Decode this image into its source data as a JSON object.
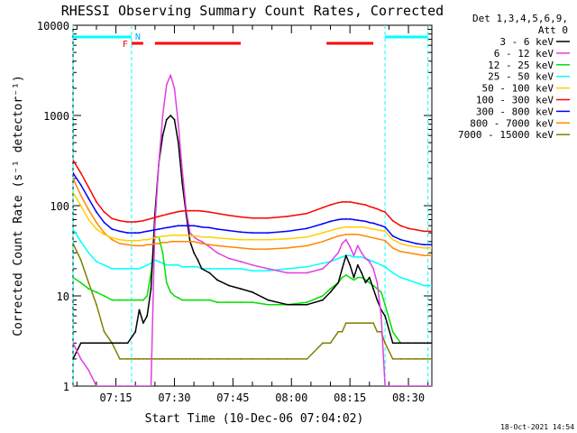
{
  "chart_data": {
    "type": "line",
    "title": "RHESSI Observing Summary Count Rates, Corrected",
    "xlabel": "Start Time (10-Dec-06 07:04:02)",
    "ylabel": "Corrected Count Rate (s⁻¹ detector⁻¹)",
    "y_scale": "log",
    "ylim": [
      1,
      10000
    ],
    "xlim_minutes": [
      0,
      92
    ],
    "x_tick_labels": [
      "07:15",
      "07:30",
      "07:45",
      "08:00",
      "08:15",
      "08:30"
    ],
    "x_tick_minutes": [
      11,
      26,
      41,
      56,
      71,
      86
    ],
    "y_tick_labels": [
      "1",
      "10",
      "100",
      "1000",
      "10000"
    ],
    "y_tick_values": [
      1,
      10,
      100,
      1000,
      10000
    ],
    "legend_header": [
      "Det 1,3,4,5,6,9,",
      "Att 0"
    ],
    "timestamp": "18-Oct-2021 14:54",
    "annotations": {
      "flare_flag": "F",
      "night_flag": "N"
    },
    "vlines_minutes": [
      0,
      15,
      80,
      91
    ],
    "night_bars": [
      [
        0,
        15
      ],
      [
        80,
        91
      ]
    ],
    "flare_bars": [
      [
        15,
        18
      ],
      [
        21,
        43
      ],
      [
        65,
        77
      ]
    ],
    "series": [
      {
        "name": "3 - 6 keV",
        "color": "#000000",
        "x": [
          0,
          2,
          4,
          6,
          8,
          10,
          12,
          14,
          16,
          17,
          18,
          19,
          20,
          21,
          22,
          23,
          24,
          25,
          26,
          27,
          28,
          29,
          30,
          31,
          32,
          33,
          35,
          37,
          40,
          43,
          46,
          50,
          55,
          60,
          64,
          66,
          68,
          69,
          70,
          71,
          72,
          73,
          74,
          75,
          76,
          77,
          78,
          79,
          80,
          82,
          84,
          86,
          88,
          90,
          92
        ],
        "y": [
          2,
          3,
          3,
          3,
          3,
          3,
          3,
          3,
          4,
          7,
          5,
          6,
          12,
          80,
          300,
          600,
          900,
          1000,
          900,
          500,
          180,
          80,
          40,
          30,
          25,
          20,
          18,
          15,
          13,
          12,
          11,
          9,
          8,
          8,
          9,
          11,
          14,
          20,
          28,
          22,
          16,
          22,
          18,
          14,
          16,
          12,
          9,
          7,
          6,
          3,
          3,
          3,
          3,
          3,
          3
        ]
      },
      {
        "name": "6 - 12 keV",
        "color": "#e040e0",
        "x": [
          0,
          2,
          4,
          6,
          8,
          10,
          12,
          14,
          16,
          17,
          18,
          19,
          20,
          21,
          22,
          23,
          24,
          25,
          26,
          27,
          28,
          29,
          30,
          31,
          32,
          33,
          35,
          37,
          40,
          43,
          46,
          50,
          55,
          60,
          64,
          66,
          68,
          69,
          70,
          71,
          72,
          73,
          74,
          75,
          76,
          77,
          78,
          79,
          80,
          82,
          84,
          86,
          88,
          90,
          92
        ],
        "y": [
          3,
          2,
          1.5,
          1,
          1,
          1,
          1,
          1,
          1,
          1,
          1,
          1,
          1,
          60,
          300,
          1000,
          2200,
          2800,
          2000,
          800,
          250,
          90,
          50,
          45,
          42,
          40,
          35,
          30,
          26,
          24,
          22,
          20,
          18,
          18,
          20,
          24,
          30,
          38,
          42,
          35,
          28,
          36,
          30,
          26,
          24,
          20,
          14,
          6,
          1,
          1,
          1,
          1,
          1,
          1,
          1
        ]
      },
      {
        "name": "12 - 25 keV",
        "color": "#00e000",
        "x": [
          0,
          2,
          4,
          6,
          8,
          10,
          12,
          14,
          16,
          17,
          18,
          19,
          20,
          21,
          22,
          23,
          24,
          25,
          26,
          27,
          28,
          29,
          30,
          31,
          32,
          33,
          35,
          37,
          40,
          43,
          46,
          50,
          55,
          60,
          64,
          66,
          68,
          69,
          70,
          71,
          72,
          73,
          74,
          75,
          76,
          77,
          78,
          79,
          80,
          82,
          84,
          86,
          88,
          90,
          92
        ],
        "y": [
          16,
          14,
          12,
          11,
          10,
          9,
          9,
          9,
          9,
          9,
          9,
          10,
          18,
          45,
          45,
          30,
          14,
          11,
          10,
          9.5,
          9,
          9,
          9,
          9,
          9,
          9,
          9,
          8.5,
          8.5,
          8.5,
          8.5,
          8,
          8,
          8.5,
          10,
          12,
          14,
          16,
          17,
          16,
          15,
          16,
          16,
          15,
          14,
          13,
          12,
          11,
          8,
          4,
          3,
          3,
          3,
          3,
          3
        ]
      },
      {
        "name": "25 - 50 keV",
        "color": "#00ffff",
        "x": [
          0,
          2,
          4,
          6,
          8,
          10,
          12,
          14,
          16,
          17,
          18,
          19,
          20,
          21,
          22,
          23,
          24,
          25,
          26,
          27,
          28,
          29,
          30,
          31,
          32,
          33,
          35,
          37,
          40,
          43,
          46,
          50,
          55,
          60,
          64,
          66,
          68,
          69,
          70,
          71,
          72,
          73,
          74,
          75,
          76,
          77,
          78,
          79,
          80,
          82,
          84,
          86,
          88,
          90,
          92
        ],
        "y": [
          55,
          40,
          30,
          24,
          22,
          20,
          20,
          20,
          20,
          20,
          21,
          22,
          23,
          25,
          24,
          23,
          22,
          22,
          22,
          22,
          21,
          21,
          21,
          21,
          21,
          20,
          20,
          20,
          20,
          20,
          19,
          19,
          20,
          21,
          23,
          24,
          26,
          27,
          28,
          28,
          27,
          27,
          27,
          26,
          25,
          24,
          23,
          22,
          21,
          18,
          16,
          15,
          14,
          13,
          13
        ]
      },
      {
        "name": "50 - 100 keV",
        "color": "#ffd000",
        "x": [
          0,
          2,
          4,
          6,
          8,
          10,
          12,
          14,
          16,
          17,
          18,
          19,
          20,
          21,
          22,
          23,
          24,
          25,
          26,
          27,
          28,
          29,
          30,
          31,
          32,
          33,
          35,
          37,
          40,
          43,
          46,
          50,
          55,
          60,
          64,
          66,
          68,
          69,
          70,
          71,
          72,
          73,
          74,
          75,
          76,
          77,
          78,
          79,
          80,
          82,
          84,
          86,
          88,
          90,
          92
        ],
        "y": [
          140,
          100,
          70,
          55,
          48,
          44,
          42,
          41,
          41,
          41,
          42,
          42,
          43,
          44,
          45,
          46,
          46,
          47,
          47,
          47,
          47,
          47,
          46,
          46,
          46,
          45,
          45,
          44,
          43,
          42,
          42,
          42,
          43,
          45,
          50,
          53,
          56,
          57,
          58,
          58,
          58,
          58,
          58,
          57,
          56,
          55,
          54,
          53,
          52,
          42,
          38,
          36,
          35,
          34,
          34
        ]
      },
      {
        "name": "100 - 300 keV",
        "color": "#ff0000",
        "x": [
          0,
          2,
          4,
          6,
          8,
          10,
          12,
          14,
          16,
          17,
          18,
          19,
          20,
          21,
          22,
          23,
          24,
          25,
          26,
          27,
          28,
          29,
          30,
          31,
          32,
          33,
          35,
          37,
          40,
          43,
          46,
          50,
          55,
          60,
          64,
          66,
          68,
          69,
          70,
          71,
          72,
          73,
          74,
          75,
          76,
          77,
          78,
          79,
          80,
          82,
          84,
          86,
          88,
          90,
          92
        ],
        "y": [
          320,
          230,
          160,
          110,
          85,
          72,
          68,
          66,
          66,
          67,
          68,
          70,
          72,
          74,
          76,
          78,
          80,
          82,
          84,
          86,
          87,
          88,
          88,
          88,
          88,
          87,
          85,
          82,
          78,
          75,
          73,
          73,
          76,
          82,
          95,
          102,
          108,
          110,
          110,
          110,
          108,
          106,
          104,
          102,
          98,
          95,
          92,
          88,
          85,
          68,
          60,
          56,
          54,
          52,
          52
        ]
      },
      {
        "name": "300 - 800 keV",
        "color": "#0000ff",
        "x": [
          0,
          2,
          4,
          6,
          8,
          10,
          12,
          14,
          16,
          17,
          18,
          19,
          20,
          21,
          22,
          23,
          24,
          25,
          26,
          27,
          28,
          29,
          30,
          31,
          32,
          33,
          35,
          37,
          40,
          43,
          46,
          50,
          55,
          60,
          64,
          66,
          68,
          69,
          70,
          71,
          72,
          73,
          74,
          75,
          76,
          77,
          78,
          79,
          80,
          82,
          84,
          86,
          88,
          90,
          92
        ],
        "y": [
          230,
          170,
          120,
          85,
          65,
          55,
          52,
          50,
          50,
          50,
          51,
          52,
          53,
          54,
          55,
          56,
          57,
          58,
          59,
          60,
          60,
          60,
          60,
          60,
          59,
          58,
          57,
          55,
          53,
          51,
          50,
          50,
          52,
          56,
          63,
          67,
          70,
          71,
          71,
          71,
          70,
          69,
          68,
          67,
          65,
          64,
          62,
          60,
          58,
          46,
          42,
          40,
          38,
          37,
          37
        ]
      },
      {
        "name": "800 - 7000 keV",
        "color": "#ff8800",
        "x": [
          0,
          2,
          4,
          6,
          8,
          10,
          12,
          14,
          16,
          17,
          18,
          19,
          20,
          21,
          22,
          23,
          24,
          25,
          26,
          27,
          28,
          29,
          30,
          31,
          32,
          33,
          35,
          37,
          40,
          43,
          46,
          50,
          55,
          60,
          64,
          66,
          68,
          69,
          70,
          71,
          72,
          73,
          74,
          75,
          76,
          77,
          78,
          79,
          80,
          82,
          84,
          86,
          88,
          90,
          92
        ],
        "y": [
          200,
          130,
          90,
          65,
          50,
          42,
          38,
          37,
          36,
          36,
          36,
          37,
          37,
          38,
          38,
          39,
          39,
          40,
          40,
          40,
          40,
          40,
          40,
          40,
          39,
          38,
          37,
          36,
          35,
          34,
          33,
          33,
          34,
          36,
          40,
          43,
          46,
          47,
          48,
          48,
          48,
          48,
          47,
          46,
          45,
          44,
          43,
          42,
          41,
          34,
          31,
          30,
          29,
          28,
          28
        ]
      },
      {
        "name": "7000 - 15000 keV",
        "color": "#808000",
        "x": [
          0,
          2,
          4,
          6,
          8,
          10,
          12,
          14,
          16,
          17,
          18,
          19,
          20,
          21,
          22,
          23,
          24,
          25,
          26,
          27,
          28,
          29,
          30,
          31,
          32,
          33,
          35,
          37,
          40,
          43,
          46,
          50,
          55,
          60,
          64,
          66,
          68,
          69,
          70,
          71,
          72,
          73,
          74,
          75,
          76,
          77,
          78,
          79,
          80,
          82,
          84,
          86,
          88,
          90,
          92
        ],
        "y": [
          38,
          25,
          14,
          8,
          4,
          3,
          2,
          2,
          2,
          2,
          2,
          2,
          2,
          2,
          2,
          2,
          2,
          2,
          2,
          2,
          2,
          2,
          2,
          2,
          2,
          2,
          2,
          2,
          2,
          2,
          2,
          2,
          2,
          2,
          3,
          3,
          4,
          4,
          5,
          5,
          5,
          5,
          5,
          5,
          5,
          5,
          4,
          4,
          3,
          2,
          2,
          2,
          2,
          2,
          2
        ]
      }
    ]
  }
}
